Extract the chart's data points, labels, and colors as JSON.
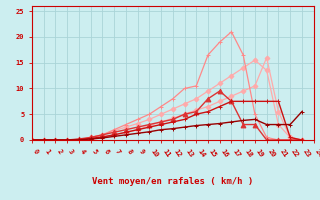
{
  "xlabel": "Vent moyen/en rafales ( km/h )",
  "bg_color": "#cceef0",
  "grid_color": "#aad4d8",
  "x_max": 24,
  "y_max": 26,
  "series": [
    {
      "color": "#ffaaaa",
      "linewidth": 0.9,
      "marker": "D",
      "markersize": 2.5,
      "x": [
        0,
        1,
        2,
        3,
        4,
        5,
        6,
        7,
        8,
        9,
        10,
        11,
        12,
        13,
        14,
        15,
        16,
        17,
        18,
        19,
        20,
        21,
        22,
        23
      ],
      "y": [
        0,
        0,
        0,
        0,
        0,
        0,
        0.5,
        1.0,
        1.5,
        2.0,
        2.8,
        3.5,
        4.2,
        5.0,
        5.8,
        6.5,
        7.5,
        8.5,
        9.5,
        10.5,
        16.0,
        5.5,
        0.5,
        0
      ]
    },
    {
      "color": "#ffaaaa",
      "linewidth": 0.9,
      "marker": "D",
      "markersize": 2.5,
      "x": [
        0,
        1,
        2,
        3,
        4,
        5,
        6,
        7,
        8,
        9,
        10,
        11,
        12,
        13,
        14,
        15,
        16,
        17,
        18,
        19,
        20,
        21,
        22,
        23
      ],
      "y": [
        0,
        0,
        0,
        0,
        0,
        0.5,
        1.0,
        1.8,
        2.5,
        3.2,
        4.0,
        5.0,
        6.0,
        7.0,
        8.0,
        9.5,
        11.0,
        12.5,
        14.0,
        15.5,
        13.5,
        3.0,
        0.5,
        0
      ]
    },
    {
      "color": "#ff8888",
      "linewidth": 0.9,
      "marker": "+",
      "markersize": 3.5,
      "x": [
        0,
        1,
        2,
        3,
        4,
        5,
        6,
        7,
        8,
        9,
        10,
        11,
        12,
        13,
        14,
        15,
        16,
        17,
        18,
        19,
        20,
        21,
        22,
        23
      ],
      "y": [
        0,
        0,
        0,
        0,
        0,
        0.5,
        1.0,
        2.0,
        3.0,
        4.0,
        5.0,
        6.5,
        8.0,
        10.0,
        10.5,
        16.5,
        19.0,
        21.0,
        16.5,
        5.0,
        0.5,
        0,
        0,
        0
      ]
    },
    {
      "color": "#dd3333",
      "linewidth": 1.0,
      "marker": "^",
      "markersize": 3.5,
      "x": [
        0,
        1,
        2,
        3,
        4,
        5,
        6,
        7,
        8,
        9,
        10,
        11,
        12,
        13,
        14,
        15,
        16,
        17,
        18,
        19,
        20,
        21,
        22,
        23
      ],
      "y": [
        0,
        0,
        0,
        0,
        0.2,
        0.5,
        1.0,
        1.5,
        2.0,
        2.5,
        3.0,
        3.5,
        4.0,
        5.0,
        5.5,
        8.0,
        9.5,
        7.5,
        3.0,
        3.0,
        0,
        0,
        0,
        0
      ]
    },
    {
      "color": "#cc1111",
      "linewidth": 1.0,
      "marker": "+",
      "markersize": 3.5,
      "x": [
        0,
        1,
        2,
        3,
        4,
        5,
        6,
        7,
        8,
        9,
        10,
        11,
        12,
        13,
        14,
        15,
        16,
        17,
        18,
        19,
        20,
        21,
        22,
        23
      ],
      "y": [
        0,
        0,
        0,
        0,
        0.1,
        0.3,
        0.6,
        1.0,
        1.5,
        2.0,
        2.5,
        3.0,
        3.5,
        4.0,
        5.0,
        5.5,
        6.5,
        7.5,
        7.5,
        7.5,
        7.5,
        7.5,
        0.5,
        0
      ]
    },
    {
      "color": "#990000",
      "linewidth": 1.0,
      "marker": "+",
      "markersize": 3.5,
      "x": [
        0,
        1,
        2,
        3,
        4,
        5,
        6,
        7,
        8,
        9,
        10,
        11,
        12,
        13,
        14,
        15,
        16,
        17,
        18,
        19,
        20,
        21,
        22,
        23
      ],
      "y": [
        0,
        0,
        0,
        0,
        0,
        0.2,
        0.4,
        0.7,
        1.0,
        1.3,
        1.6,
        2.0,
        2.2,
        2.5,
        2.8,
        3.0,
        3.2,
        3.5,
        3.8,
        4.0,
        3.0,
        3.0,
        3.0,
        5.5
      ]
    }
  ],
  "tick_color": "#cc0000",
  "label_color": "#cc0000",
  "tick_fontsize": 5.0,
  "label_fontsize": 6.5
}
